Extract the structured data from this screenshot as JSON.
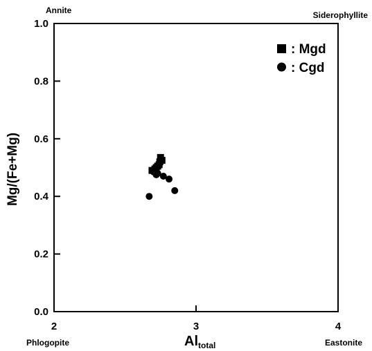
{
  "chart_data": {
    "type": "scatter",
    "xlabel": {
      "main": "Al",
      "sub": "total"
    },
    "ylabel": "Mg/(Fe+Mg)",
    "xlim": [
      2,
      4
    ],
    "ylim": [
      0,
      1
    ],
    "x_ticks": [
      {
        "value": 2,
        "label": "2"
      },
      {
        "value": 3,
        "label": "3"
      },
      {
        "value": 4,
        "label": "4"
      }
    ],
    "y_ticks": [
      {
        "value": 0.0,
        "label": "0.0"
      },
      {
        "value": 0.2,
        "label": "0.2"
      },
      {
        "value": 0.4,
        "label": "0.4"
      },
      {
        "value": 0.6,
        "label": "0.6"
      },
      {
        "value": 0.8,
        "label": "0.8"
      },
      {
        "value": 1.0,
        "label": "1.0"
      }
    ],
    "corner_labels": {
      "top_left": "Annite",
      "top_right": "Siderophyllite",
      "bottom_left": "Phlogopite",
      "bottom_right": "Eastonite"
    },
    "legend_placement": "top-right",
    "series": [
      {
        "name": ": Mgd",
        "marker": "square",
        "points": [
          [
            2.69,
            0.49
          ],
          [
            2.71,
            0.495
          ],
          [
            2.72,
            0.5
          ],
          [
            2.73,
            0.505
          ],
          [
            2.74,
            0.51
          ],
          [
            2.745,
            0.52
          ],
          [
            2.75,
            0.535
          ],
          [
            2.76,
            0.525
          ]
        ]
      },
      {
        "name": ": Cgd",
        "marker": "circle",
        "points": [
          [
            2.7,
            0.485
          ],
          [
            2.72,
            0.475
          ],
          [
            2.73,
            0.48
          ],
          [
            2.77,
            0.47
          ],
          [
            2.81,
            0.46
          ],
          [
            2.85,
            0.42
          ],
          [
            2.67,
            0.4
          ]
        ]
      }
    ],
    "grid": false
  }
}
